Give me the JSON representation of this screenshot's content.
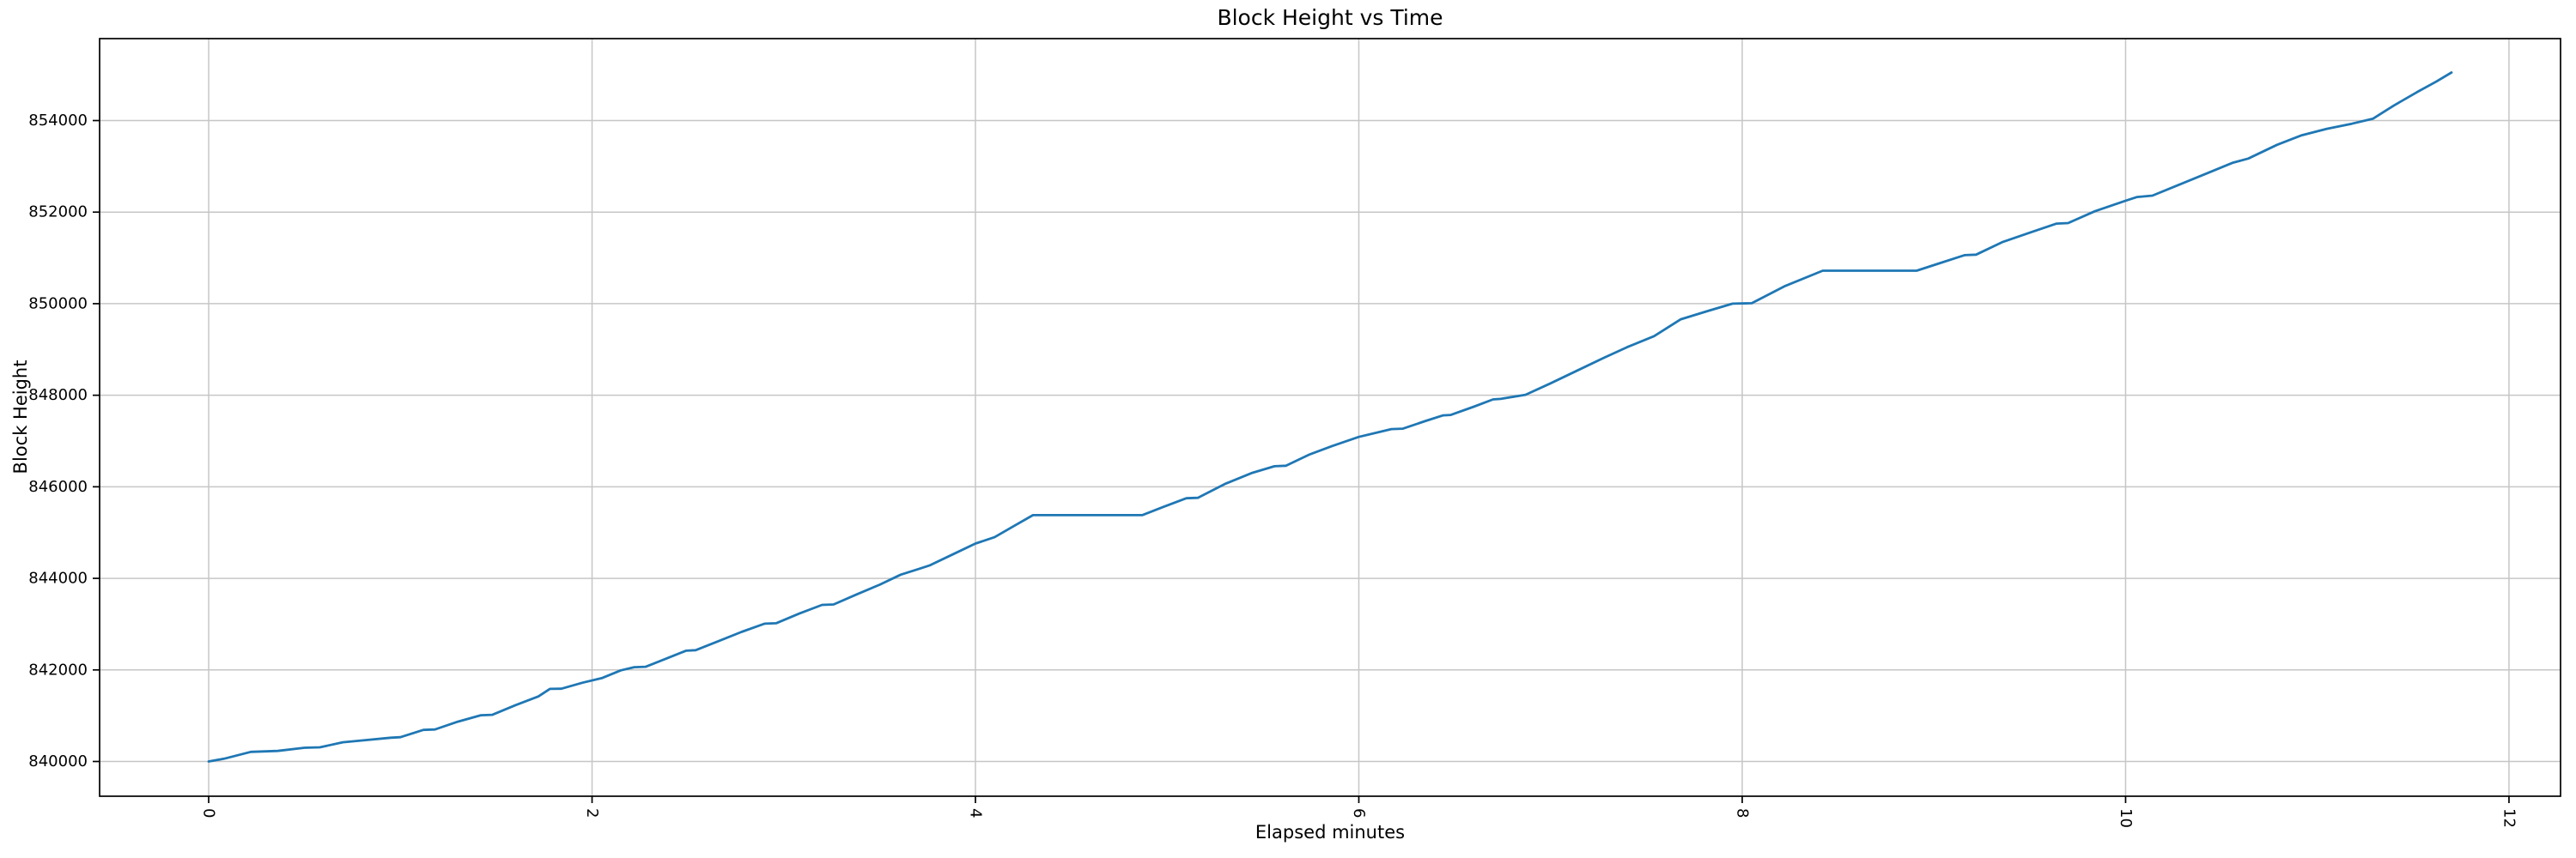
{
  "chart_data": {
    "type": "line",
    "title": "Block Height vs Time",
    "xlabel": "Elapsed minutes",
    "ylabel": "Block Height",
    "xlim": [
      -0.569,
      12.269
    ],
    "ylim": [
      839241,
      855790
    ],
    "xticks": [
      0,
      2,
      4,
      6,
      8,
      10,
      12
    ],
    "yticks": [
      840000,
      842000,
      844000,
      846000,
      848000,
      850000,
      852000,
      854000
    ],
    "xtick_rotation_deg": 90,
    "grid": true,
    "legend": "none",
    "line_color": "#1f77b4",
    "grid_color": "#c6c6c6",
    "spine_color": "#000000",
    "series": [
      {
        "name": "block-height",
        "points": [
          [
            0.0,
            840000
          ],
          [
            0.08,
            840060
          ],
          [
            0.22,
            840210
          ],
          [
            0.36,
            840230
          ],
          [
            0.5,
            840300
          ],
          [
            0.58,
            840310
          ],
          [
            0.7,
            840420
          ],
          [
            0.83,
            840470
          ],
          [
            0.95,
            840520
          ],
          [
            1.0,
            840530
          ],
          [
            1.12,
            840690
          ],
          [
            1.18,
            840700
          ],
          [
            1.3,
            840870
          ],
          [
            1.42,
            841010
          ],
          [
            1.48,
            841020
          ],
          [
            1.6,
            841230
          ],
          [
            1.72,
            841420
          ],
          [
            1.78,
            841585
          ],
          [
            1.84,
            841590
          ],
          [
            1.95,
            841720
          ],
          [
            2.05,
            841820
          ],
          [
            2.15,
            841990
          ],
          [
            2.22,
            842060
          ],
          [
            2.28,
            842070
          ],
          [
            2.4,
            842270
          ],
          [
            2.49,
            842420
          ],
          [
            2.54,
            842430
          ],
          [
            2.66,
            842630
          ],
          [
            2.78,
            842830
          ],
          [
            2.9,
            843010
          ],
          [
            2.96,
            843020
          ],
          [
            3.08,
            843230
          ],
          [
            3.2,
            843420
          ],
          [
            3.26,
            843430
          ],
          [
            3.38,
            843650
          ],
          [
            3.5,
            843860
          ],
          [
            3.61,
            844080
          ],
          [
            3.7,
            844200
          ],
          [
            3.76,
            844280
          ],
          [
            3.88,
            844520
          ],
          [
            4.0,
            844760
          ],
          [
            4.1,
            844900
          ],
          [
            4.2,
            845140
          ],
          [
            4.3,
            845380
          ],
          [
            4.87,
            845380
          ],
          [
            4.98,
            845560
          ],
          [
            5.1,
            845750
          ],
          [
            5.16,
            845760
          ],
          [
            5.3,
            846060
          ],
          [
            5.44,
            846300
          ],
          [
            5.56,
            846450
          ],
          [
            5.62,
            846460
          ],
          [
            5.74,
            846700
          ],
          [
            5.86,
            846890
          ],
          [
            6.0,
            847090
          ],
          [
            6.17,
            847260
          ],
          [
            6.23,
            847270
          ],
          [
            6.35,
            847440
          ],
          [
            6.44,
            847560
          ],
          [
            6.48,
            847570
          ],
          [
            6.6,
            847750
          ],
          [
            6.7,
            847910
          ],
          [
            6.74,
            847920
          ],
          [
            6.87,
            848010
          ],
          [
            7.0,
            848260
          ],
          [
            7.14,
            848540
          ],
          [
            7.28,
            848820
          ],
          [
            7.4,
            849050
          ],
          [
            7.54,
            849290
          ],
          [
            7.68,
            849660
          ],
          [
            7.82,
            849840
          ],
          [
            7.95,
            850000
          ],
          [
            8.05,
            850010
          ],
          [
            8.22,
            850380
          ],
          [
            8.42,
            850720
          ],
          [
            8.91,
            850720
          ],
          [
            9.02,
            850870
          ],
          [
            9.16,
            851060
          ],
          [
            9.22,
            851070
          ],
          [
            9.36,
            851350
          ],
          [
            9.5,
            851550
          ],
          [
            9.64,
            851750
          ],
          [
            9.7,
            851760
          ],
          [
            9.84,
            852020
          ],
          [
            10.0,
            852250
          ],
          [
            10.06,
            852330
          ],
          [
            10.14,
            852360
          ],
          [
            10.28,
            852600
          ],
          [
            10.42,
            852840
          ],
          [
            10.56,
            853080
          ],
          [
            10.64,
            853170
          ],
          [
            10.79,
            853470
          ],
          [
            10.92,
            853680
          ],
          [
            11.05,
            853820
          ],
          [
            11.18,
            853930
          ],
          [
            11.29,
            854040
          ],
          [
            11.4,
            854330
          ],
          [
            11.52,
            854620
          ],
          [
            11.62,
            854850
          ],
          [
            11.7,
            855050
          ]
        ]
      }
    ]
  }
}
